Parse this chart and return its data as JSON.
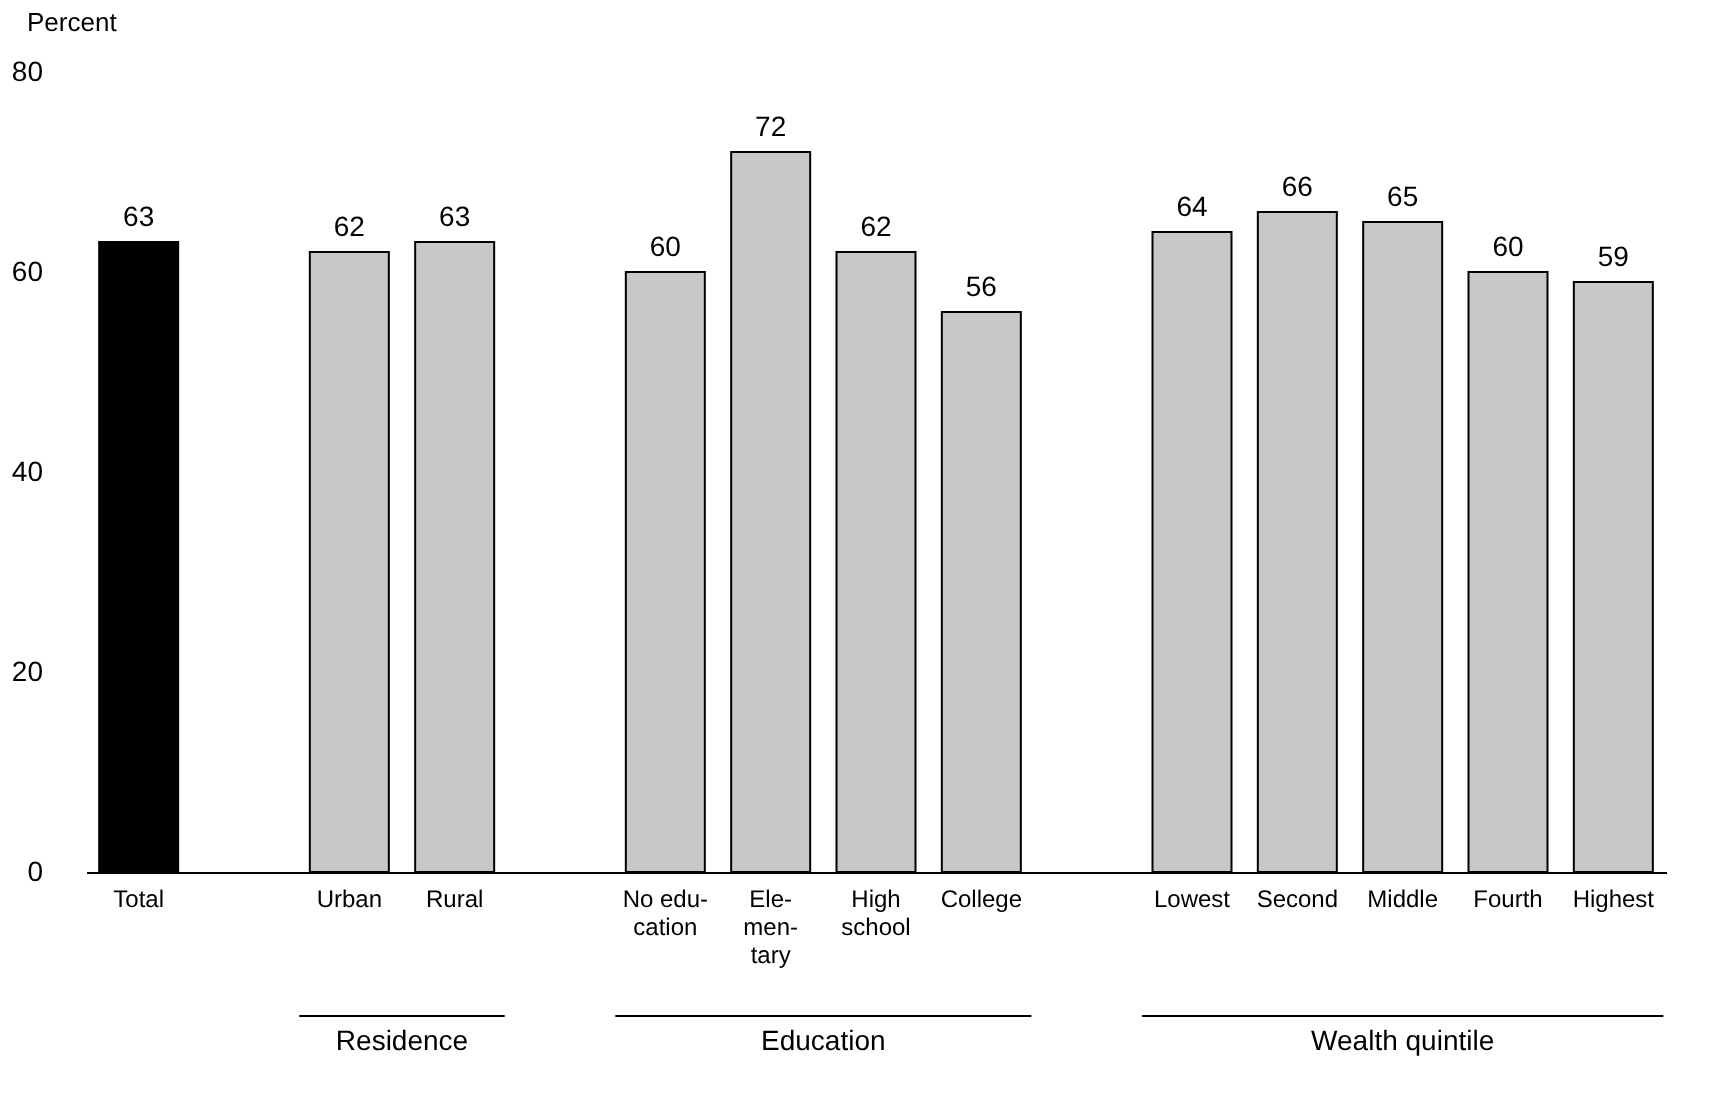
{
  "chart_data": {
    "type": "bar",
    "ylabel": "Percent",
    "categories": [
      "Total",
      null,
      "Urban",
      "Rural",
      null,
      "No edu-\ncation",
      "Ele-\nmen-\ntary",
      "High\nschool",
      "College",
      null,
      "Lowest",
      "Second",
      "Middle",
      "Fourth",
      "Highest"
    ],
    "values": [
      63,
      null,
      62,
      63,
      null,
      60,
      72,
      62,
      56,
      null,
      64,
      66,
      65,
      60,
      59
    ],
    "colors": [
      "#000000",
      null,
      "#c8c8c8",
      "#c8c8c8",
      null,
      "#c8c8c8",
      "#c8c8c8",
      "#c8c8c8",
      "#c8c8c8",
      null,
      "#c8c8c8",
      "#c8c8c8",
      "#c8c8c8",
      "#c8c8c8",
      "#c8c8c8"
    ],
    "ylim": [
      0,
      80
    ],
    "yticks": [
      0,
      20,
      40,
      60,
      80
    ],
    "data_labels": true,
    "grid": false,
    "annotations": [
      "Residence",
      "Education",
      "Wealth quintile"
    ]
  }
}
